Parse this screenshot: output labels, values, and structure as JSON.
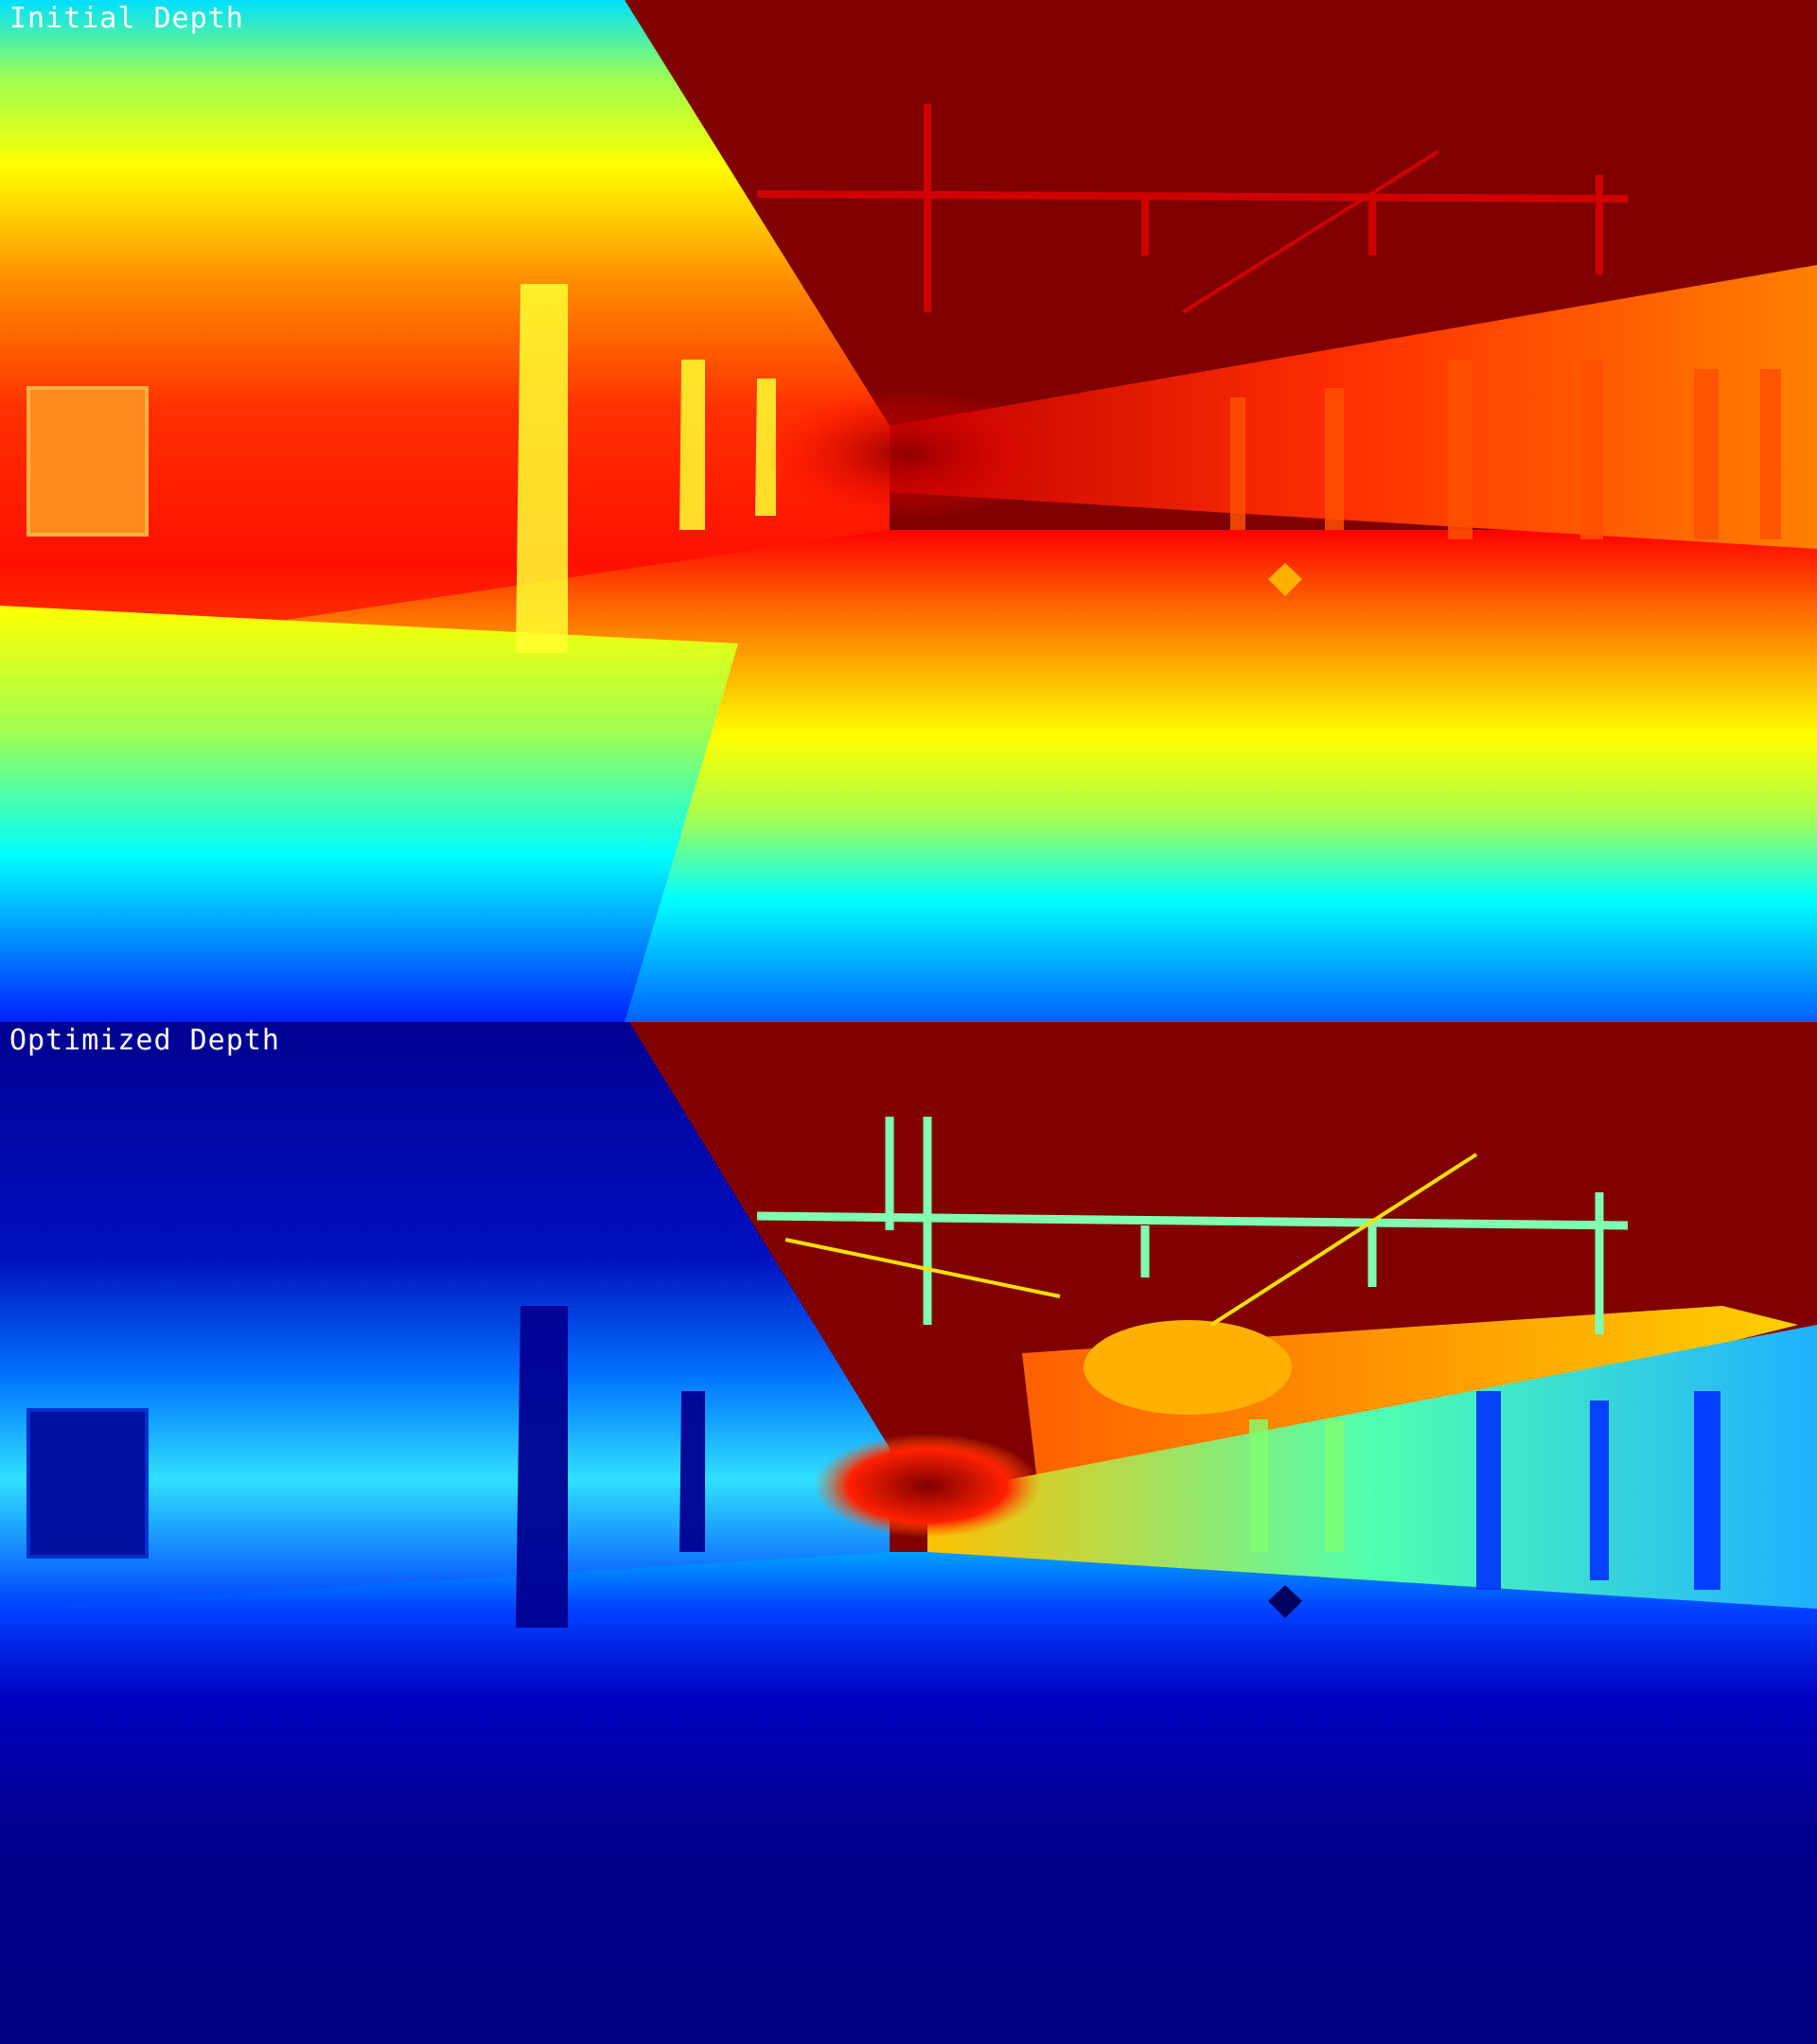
{
  "panels": {
    "top": {
      "label": "Initial Depth",
      "colormap": "jet"
    },
    "bottom": {
      "label": "Optimized Depth",
      "colormap": "jet"
    }
  },
  "colors": {
    "dark_red": "#800000",
    "red": "#ff0000",
    "orange": "#ff8000",
    "yellow": "#ffff00",
    "green_yellow": "#aaff4c",
    "cyan": "#00ffff",
    "light_blue": "#0080ff",
    "blue": "#0000ff",
    "navy": "#000080",
    "label_text": "#ffffff"
  }
}
